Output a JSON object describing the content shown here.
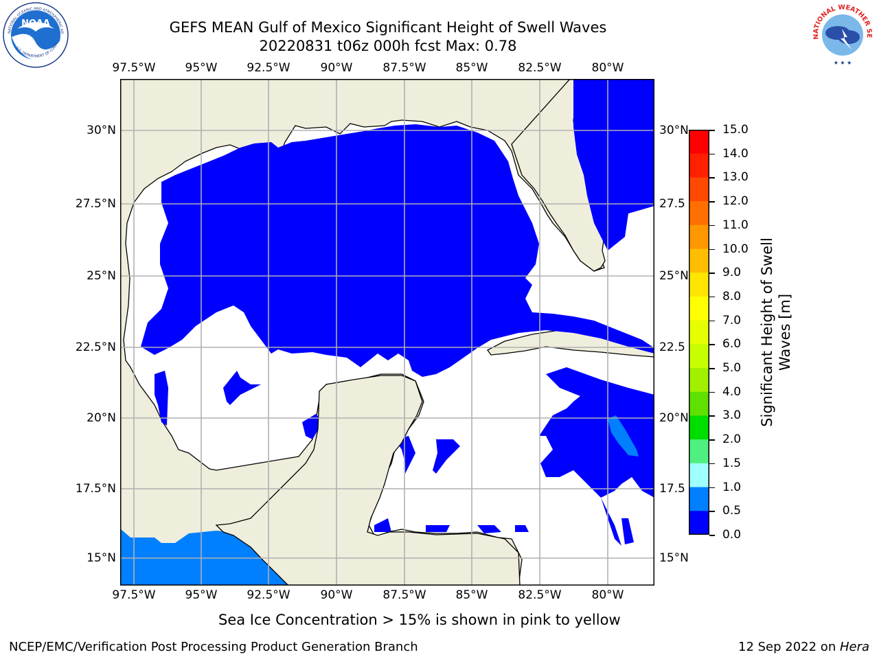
{
  "title": {
    "line1": "GEFS MEAN Gulf of Mexico Significant Height of Swell Waves",
    "line2": "20220831 t06z 000h fcst   Max: 0.78"
  },
  "logos": {
    "left": {
      "text": "NOAA",
      "ring_text": "NATIONAL OCEANIC AND ATMOSPHERIC ADMINISTRATION",
      "ring_bottom": "U.S. DEPARTMENT OF COMMERCE"
    },
    "right": {
      "ring_text": "NATIONAL WEATHER SERVICE"
    }
  },
  "map": {
    "lon_labels": [
      "97.5°W",
      "95°W",
      "92.5°W",
      "90°W",
      "87.5°W",
      "85°W",
      "82.5°W",
      "80°W"
    ],
    "lat_labels_left": [
      "30°N",
      "27.5°N",
      "25°N",
      "22.5°N",
      "20°N",
      "17.5°N",
      "15°N"
    ],
    "lat_labels_right": [
      "30°N",
      "27.5",
      "25°N",
      "22.5",
      "20°N",
      "17.5",
      "15°N"
    ],
    "colors": {
      "land": "#efeedc",
      "water_low": "#0000ff",
      "water_mid": "#0080ff",
      "open": "#ffffff",
      "grid": "#b0b0b0"
    }
  },
  "colorbar": {
    "title": "Significant Height of Swell Waves [m]",
    "ticks": [
      "15.0",
      "14.0",
      "13.0",
      "12.0",
      "11.0",
      "10.0",
      "9.0",
      "8.0",
      "7.0",
      "6.0",
      "5.0",
      "4.0",
      "3.0",
      "2.0",
      "1.5",
      "1.0",
      "0.5",
      "0.0"
    ],
    "colors": [
      "#ff0000",
      "#ff2000",
      "#ff4800",
      "#ff7000",
      "#ff9800",
      "#ffbf00",
      "#ffe600",
      "#ffff00",
      "#e6ff00",
      "#c8ff00",
      "#a0f000",
      "#60e000",
      "#00dd00",
      "#50f080",
      "#a0ffff",
      "#50ffff",
      "#00ffff",
      "#0080ff",
      "#0000ff"
    ]
  },
  "footer": {
    "note": "Sea Ice Concentration > 15% is shown in pink to yellow",
    "left": "NCEP/EMC/Verification Post Processing Product Generation Branch",
    "right_date": "12 Sep 2022 on ",
    "right_host": "Hera"
  }
}
